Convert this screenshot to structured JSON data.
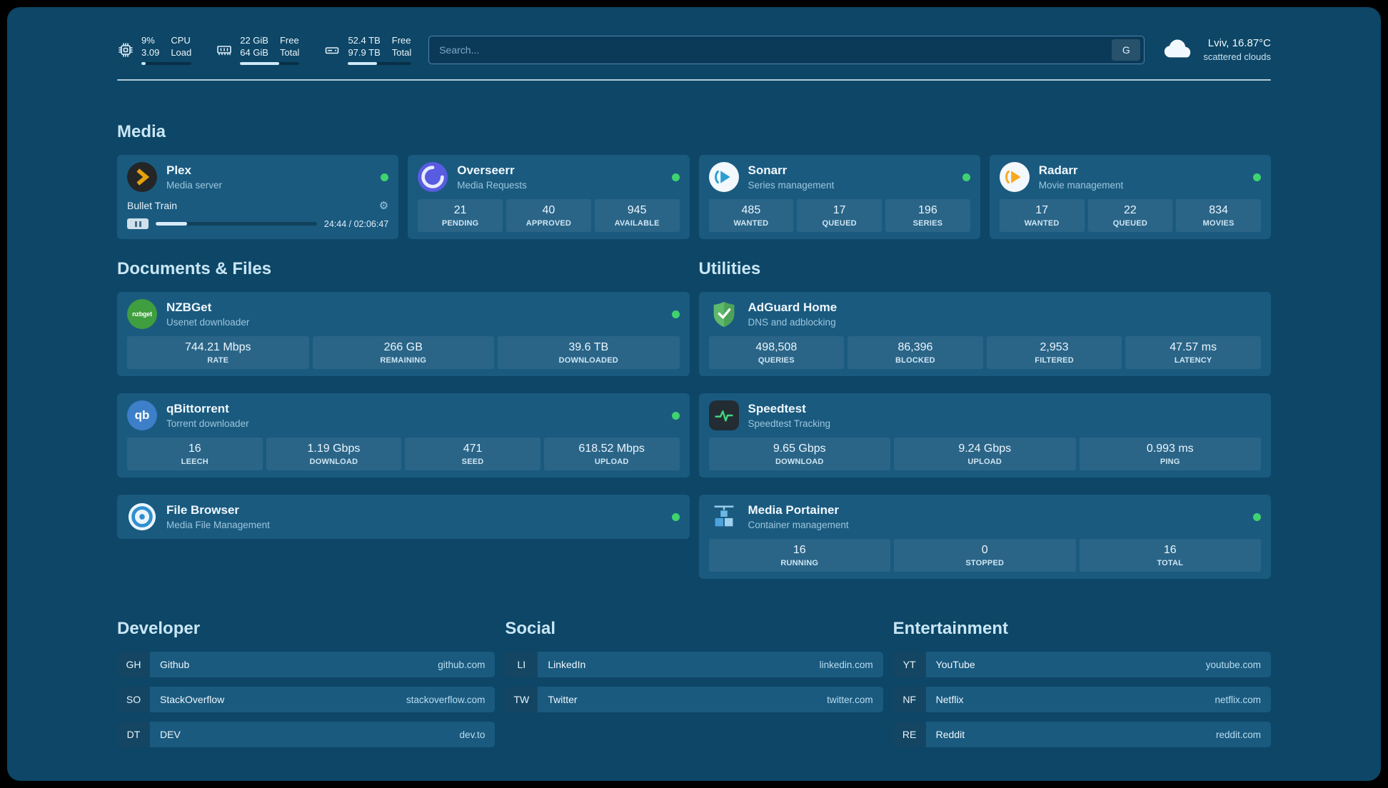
{
  "colors": {
    "background": "#0d4666",
    "card": "#1a5a7f",
    "section_heading": "#c9e6f5",
    "status_online": "#3ed36e",
    "progress_fill": "#cfe8f7"
  },
  "topbar": {
    "cpu": {
      "values": [
        "9%",
        "3.09"
      ],
      "labels": [
        "CPU",
        "Load"
      ],
      "percent": 9
    },
    "ram": {
      "values": [
        "22 GiB",
        "64 GiB"
      ],
      "labels": [
        "Free",
        "Total"
      ],
      "percent": 66
    },
    "disk": {
      "values": [
        "52.4 TB",
        "97.9 TB"
      ],
      "labels": [
        "Free",
        "Total"
      ],
      "percent": 46
    },
    "search": {
      "placeholder": "Search...",
      "button_label": "G"
    },
    "weather": {
      "location": "Lviv, 16.87°C",
      "condition": "scattered clouds"
    }
  },
  "media": {
    "title": "Media",
    "plex": {
      "name": "Plex",
      "subtitle": "Media server",
      "now_playing": {
        "title": "Bullet Train",
        "time": "24:44 / 02:06:47",
        "progress": 19.5
      }
    },
    "overseerr": {
      "name": "Overseerr",
      "subtitle": "Media Requests",
      "stats": [
        {
          "value": "21",
          "label": "PENDING"
        },
        {
          "value": "40",
          "label": "APPROVED"
        },
        {
          "value": "945",
          "label": "AVAILABLE"
        }
      ]
    },
    "sonarr": {
      "name": "Sonarr",
      "subtitle": "Series management",
      "stats": [
        {
          "value": "485",
          "label": "WANTED"
        },
        {
          "value": "17",
          "label": "QUEUED"
        },
        {
          "value": "196",
          "label": "SERIES"
        }
      ]
    },
    "radarr": {
      "name": "Radarr",
      "subtitle": "Movie management",
      "stats": [
        {
          "value": "17",
          "label": "WANTED"
        },
        {
          "value": "22",
          "label": "QUEUED"
        },
        {
          "value": "834",
          "label": "MOVIES"
        }
      ]
    }
  },
  "documents": {
    "title": "Documents & Files",
    "nzbget": {
      "name": "NZBGet",
      "subtitle": "Usenet downloader",
      "stats": [
        {
          "value": "744.21 Mbps",
          "label": "RATE"
        },
        {
          "value": "266 GB",
          "label": "REMAINING"
        },
        {
          "value": "39.6 TB",
          "label": "DOWNLOADED"
        }
      ]
    },
    "qbittorrent": {
      "name": "qBittorrent",
      "subtitle": "Torrent downloader",
      "stats": [
        {
          "value": "16",
          "label": "LEECH"
        },
        {
          "value": "1.19 Gbps",
          "label": "DOWNLOAD"
        },
        {
          "value": "471",
          "label": "SEED"
        },
        {
          "value": "618.52 Mbps",
          "label": "UPLOAD"
        }
      ]
    },
    "filebrowser": {
      "name": "File Browser",
      "subtitle": "Media File Management"
    }
  },
  "utilities": {
    "title": "Utilities",
    "adguard": {
      "name": "AdGuard Home",
      "subtitle": "DNS and adblocking",
      "stats": [
        {
          "value": "498,508",
          "label": "QUERIES"
        },
        {
          "value": "86,396",
          "label": "BLOCKED"
        },
        {
          "value": "2,953",
          "label": "FILTERED"
        },
        {
          "value": "47.57 ms",
          "label": "LATENCY"
        }
      ]
    },
    "speedtest": {
      "name": "Speedtest",
      "subtitle": "Speedtest Tracking",
      "stats": [
        {
          "value": "9.65 Gbps",
          "label": "DOWNLOAD"
        },
        {
          "value": "9.24 Gbps",
          "label": "UPLOAD"
        },
        {
          "value": "0.993 ms",
          "label": "PING"
        }
      ]
    },
    "portainer": {
      "name": "Media Portainer",
      "subtitle": "Container management",
      "stats": [
        {
          "value": "16",
          "label": "RUNNING"
        },
        {
          "value": "0",
          "label": "STOPPED"
        },
        {
          "value": "16",
          "label": "TOTAL"
        }
      ]
    }
  },
  "bookmarks": [
    {
      "title": "Developer",
      "items": [
        {
          "abbr": "GH",
          "name": "Github",
          "domain": "github.com"
        },
        {
          "abbr": "SO",
          "name": "StackOverflow",
          "domain": "stackoverflow.com"
        },
        {
          "abbr": "DT",
          "name": "DEV",
          "domain": "dev.to"
        }
      ]
    },
    {
      "title": "Social",
      "items": [
        {
          "abbr": "LI",
          "name": "LinkedIn",
          "domain": "linkedin.com"
        },
        {
          "abbr": "TW",
          "name": "Twitter",
          "domain": "twitter.com"
        }
      ]
    },
    {
      "title": "Entertainment",
      "items": [
        {
          "abbr": "YT",
          "name": "YouTube",
          "domain": "youtube.com"
        },
        {
          "abbr": "NF",
          "name": "Netflix",
          "domain": "netflix.com"
        },
        {
          "abbr": "RE",
          "name": "Reddit",
          "domain": "reddit.com"
        }
      ]
    }
  ]
}
